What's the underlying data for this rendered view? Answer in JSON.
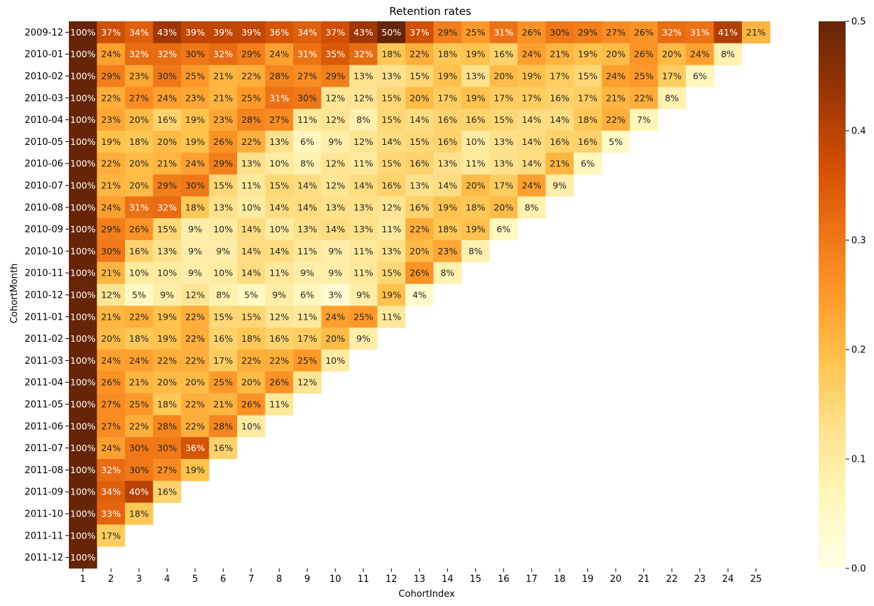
{
  "chart_data": {
    "type": "heatmap",
    "title": "Retention rates",
    "xlabel": "CohortIndex",
    "ylabel": "CohortMonth",
    "x": [
      "1",
      "2",
      "3",
      "4",
      "5",
      "6",
      "7",
      "8",
      "9",
      "10",
      "11",
      "12",
      "13",
      "14",
      "15",
      "16",
      "17",
      "18",
      "19",
      "20",
      "21",
      "22",
      "23",
      "24",
      "25"
    ],
    "y": [
      "2009-12",
      "2010-01",
      "2010-02",
      "2010-03",
      "2010-04",
      "2010-05",
      "2010-06",
      "2010-07",
      "2010-08",
      "2010-09",
      "2010-10",
      "2010-11",
      "2010-12",
      "2011-01",
      "2011-02",
      "2011-03",
      "2011-04",
      "2011-05",
      "2011-06",
      "2011-07",
      "2011-08",
      "2011-09",
      "2011-10",
      "2011-11",
      "2011-12"
    ],
    "values": [
      [
        100,
        37,
        34,
        43,
        39,
        39,
        39,
        36,
        34,
        37,
        43,
        50,
        37,
        29,
        25,
        31,
        26,
        30,
        29,
        27,
        26,
        32,
        31,
        41,
        21
      ],
      [
        100,
        24,
        32,
        32,
        30,
        32,
        29,
        24,
        31,
        35,
        32,
        18,
        22,
        18,
        19,
        16,
        24,
        21,
        19,
        20,
        26,
        20,
        24,
        8
      ],
      [
        100,
        29,
        23,
        30,
        25,
        21,
        22,
        28,
        27,
        29,
        13,
        13,
        15,
        19,
        13,
        20,
        19,
        17,
        15,
        24,
        25,
        17,
        6
      ],
      [
        100,
        22,
        27,
        24,
        23,
        21,
        25,
        31,
        30,
        12,
        12,
        15,
        20,
        17,
        19,
        17,
        17,
        16,
        17,
        21,
        22,
        8
      ],
      [
        100,
        23,
        20,
        16,
        19,
        23,
        28,
        27,
        11,
        12,
        8,
        15,
        14,
        16,
        16,
        15,
        14,
        14,
        18,
        22,
        7
      ],
      [
        100,
        19,
        18,
        20,
        19,
        26,
        22,
        13,
        6,
        9,
        12,
        14,
        15,
        16,
        10,
        13,
        14,
        16,
        16,
        5
      ],
      [
        100,
        22,
        20,
        21,
        24,
        29,
        13,
        10,
        8,
        12,
        11,
        15,
        16,
        13,
        11,
        13,
        14,
        21,
        6
      ],
      [
        100,
        21,
        20,
        29,
        30,
        15,
        11,
        15,
        14,
        12,
        14,
        16,
        13,
        14,
        20,
        17,
        24,
        9
      ],
      [
        100,
        24,
        31,
        32,
        18,
        13,
        10,
        14,
        14,
        13,
        13,
        12,
        16,
        19,
        18,
        20,
        8
      ],
      [
        100,
        29,
        26,
        15,
        9,
        10,
        14,
        10,
        13,
        14,
        13,
        11,
        22,
        18,
        19,
        6
      ],
      [
        100,
        30,
        16,
        13,
        9,
        9,
        14,
        14,
        11,
        9,
        11,
        13,
        20,
        23,
        8
      ],
      [
        100,
        21,
        10,
        10,
        9,
        10,
        14,
        11,
        9,
        9,
        11,
        15,
        26,
        8
      ],
      [
        100,
        12,
        5,
        9,
        12,
        8,
        5,
        9,
        6,
        3,
        9,
        19,
        4
      ],
      [
        100,
        21,
        22,
        19,
        22,
        15,
        15,
        12,
        11,
        24,
        25,
        11
      ],
      [
        100,
        20,
        18,
        19,
        22,
        16,
        18,
        16,
        17,
        20,
        9
      ],
      [
        100,
        24,
        24,
        22,
        22,
        17,
        22,
        22,
        25,
        10
      ],
      [
        100,
        26,
        21,
        20,
        20,
        25,
        20,
        26,
        12
      ],
      [
        100,
        27,
        25,
        18,
        22,
        21,
        26,
        11
      ],
      [
        100,
        27,
        22,
        28,
        22,
        28,
        10
      ],
      [
        100,
        24,
        30,
        30,
        36,
        16
      ],
      [
        100,
        32,
        30,
        27,
        19
      ],
      [
        100,
        34,
        40,
        16
      ],
      [
        100,
        33,
        18
      ],
      [
        100,
        17
      ],
      [
        100
      ]
    ],
    "value_format": "percent",
    "colormap": "YlOrBr",
    "color_range": [
      0.0,
      0.5
    ],
    "colorbar_ticks": [
      "0.0",
      "0.1",
      "0.2",
      "0.3",
      "0.4",
      "0.5"
    ],
    "colorbar_values": [
      0.0,
      0.1,
      0.2,
      0.3,
      0.4,
      0.5
    ],
    "colormap_stops": [
      "#ffffe5",
      "#fff7bc",
      "#fee391",
      "#fec44f",
      "#fe9929",
      "#ec7014",
      "#cc4c02",
      "#993404",
      "#662506"
    ],
    "annotation_colors": {
      "dark": "#262626",
      "light": "#ffffff"
    }
  }
}
